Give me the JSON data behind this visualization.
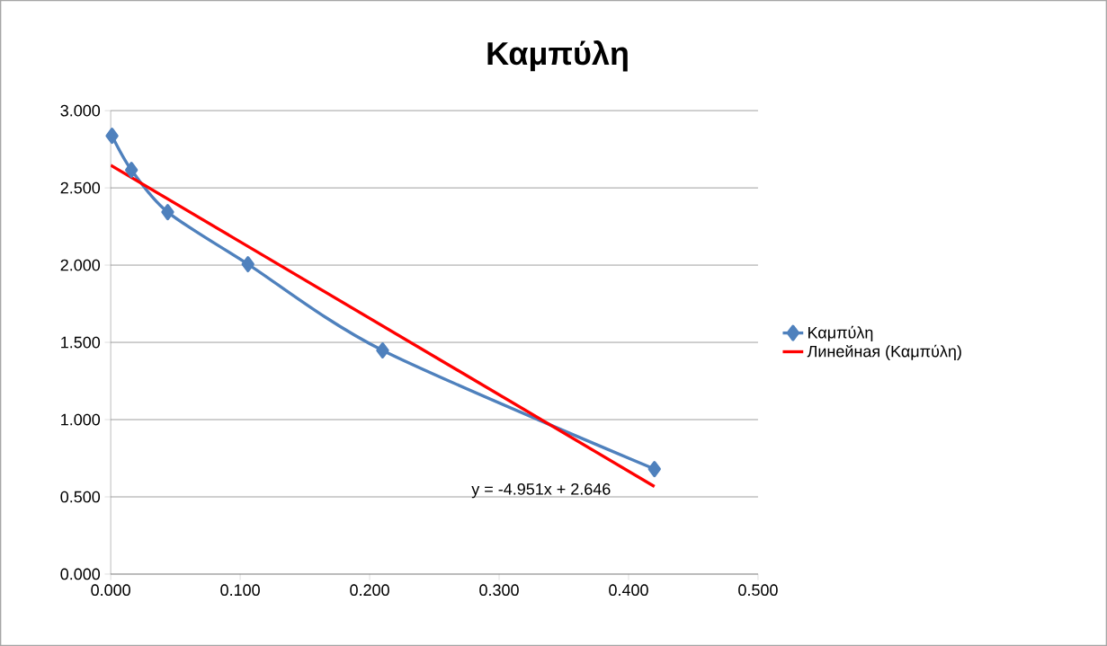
{
  "chart_data": {
    "type": "line",
    "title": "Καμπύλη",
    "series": [
      {
        "name": "Καμπύλη",
        "color": "#4f81bd",
        "marker": "diamond",
        "x": [
          0.001,
          0.016,
          0.044,
          0.106,
          0.21,
          0.42
        ],
        "values": [
          2.837,
          2.616,
          2.343,
          2.006,
          1.448,
          0.68
        ]
      },
      {
        "name": "Линейная (Καμπύλη)",
        "color": "#ff0000",
        "marker": "none",
        "x": [
          0,
          0.42
        ],
        "values": [
          2.646,
          0.567
        ]
      }
    ],
    "annotations": [
      "y = -4.951x + 2.646"
    ],
    "xlim": [
      0,
      0.5
    ],
    "ylim": [
      0,
      3
    ],
    "xticks": [
      {
        "value": 0,
        "label": "0.000"
      },
      {
        "value": 0.1,
        "label": "0.100"
      },
      {
        "value": 0.2,
        "label": "0.200"
      },
      {
        "value": 0.3,
        "label": "0.300"
      },
      {
        "value": 0.4,
        "label": "0.400"
      },
      {
        "value": 0.5,
        "label": "0.500"
      }
    ],
    "yticks": [
      {
        "value": 0,
        "label": "0.000"
      },
      {
        "value": 0.5,
        "label": "0.500"
      },
      {
        "value": 1,
        "label": "1.000"
      },
      {
        "value": 1.5,
        "label": "1.500"
      },
      {
        "value": 2,
        "label": "2.000"
      },
      {
        "value": 2.5,
        "label": "2.500"
      },
      {
        "value": 3,
        "label": "3.000"
      }
    ],
    "grid": "y",
    "legend": "right"
  }
}
